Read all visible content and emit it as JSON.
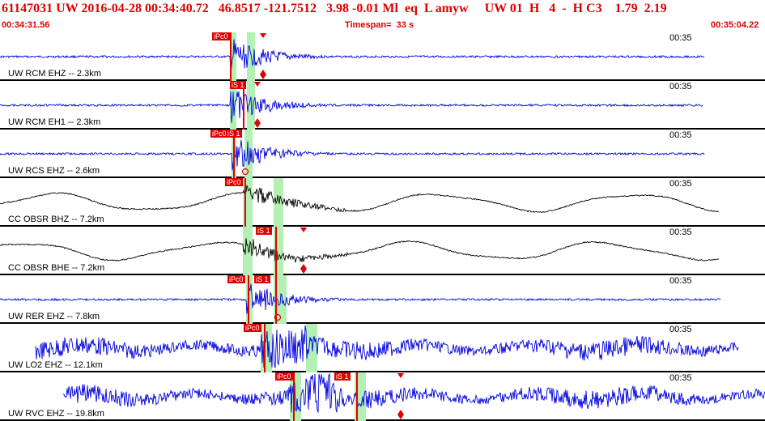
{
  "header": {
    "event_line": "61147031 UW 2016-04-28 00:34:40.72   46.8517 -121.7512   3.98 -0.01 Ml  eq  L amyw     UW 01  H   4  -  H C3    1.79  2.19",
    "start_time": "00:34:31.56",
    "timespan": "Timespan=  33 s",
    "end_time": "00:35:04.22"
  },
  "colors": {
    "header_red": "#e00000",
    "trace_blue": "#0000e0",
    "trace_black": "#000000",
    "window_green": "#b4f0b4",
    "pick_red": "#e00000"
  },
  "traces": [
    {
      "station": "UW RCM EHZ -- 2.3km",
      "time_label": "00:35",
      "color": "blue",
      "picks": [
        {
          "label": "iPc0"
        }
      ],
      "theoretical_markers": 2
    },
    {
      "station": "UW RCM EH1 -- 2.3km",
      "time_label": "00:35",
      "color": "blue",
      "picks": [
        {
          "label": "iS 1"
        }
      ],
      "theoretical_markers": 2
    },
    {
      "station": "UW RCS EHZ -- 2.6km",
      "time_label": "00:35",
      "color": "blue",
      "picks": [
        {
          "label": "iPc0"
        },
        {
          "label": "iS 1"
        }
      ],
      "theoretical_markers": 1
    },
    {
      "station": "CC OBSR BHZ -- 7.2km",
      "time_label": "00:35",
      "color": "black",
      "picks": [
        {
          "label": "iPc0"
        }
      ],
      "theoretical_markers": 0
    },
    {
      "station": "CC OBSR BHE -- 7.2km",
      "time_label": "00:35",
      "color": "black",
      "picks": [
        {
          "label": "iS 1"
        }
      ],
      "theoretical_markers": 2
    },
    {
      "station": "UW RER EHZ -- 7.8km",
      "time_label": "00:35",
      "color": "blue",
      "picks": [
        {
          "label": "iPc0"
        },
        {
          "label": "iS 1"
        }
      ],
      "theoretical_markers": 1
    },
    {
      "station": "UW LO2 EHZ -- 12.1km",
      "time_label": "00:35",
      "color": "blue",
      "picks": [
        {
          "label": "iPc0"
        }
      ],
      "theoretical_markers": 0
    },
    {
      "station": "UW RVC EHZ -- 19.8km",
      "time_label": "00:35",
      "color": "blue",
      "picks": [
        {
          "label": "iPc0"
        },
        {
          "label": "iS 1"
        }
      ],
      "theoretical_markers": 2
    }
  ]
}
